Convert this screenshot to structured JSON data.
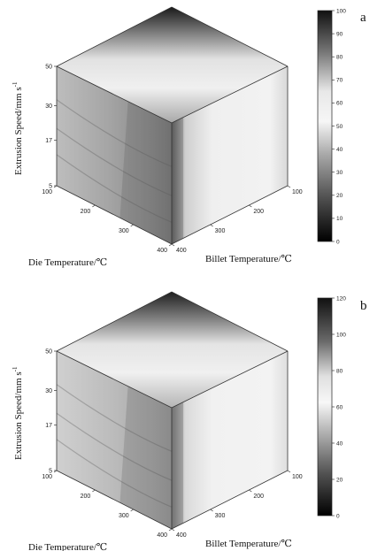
{
  "chart_data": [
    {
      "panel": "a",
      "type": "heatmap",
      "xlabel": "Die Temperature/℃",
      "ylabel_main": "Extrusion Speed/mm s",
      "ylabel_sup": "-1",
      "zlabel": "Billet Temperature/℃",
      "die_ticks": [
        "100",
        "200",
        "300",
        "400"
      ],
      "billet_ticks": [
        "100",
        "200",
        "300",
        "400"
      ],
      "speed_ticks": [
        "5",
        "17",
        "30",
        "50"
      ],
      "colorbar": {
        "min": 0,
        "max": 100,
        "ticks": [
          "0",
          "10",
          "20",
          "30",
          "40",
          "50",
          "60",
          "70",
          "80",
          "90",
          "100"
        ]
      },
      "faces": {
        "top": "dark near back corner (~95), lightening to ~60 toward front edge",
        "left": "~45-55 with darker region (~40) toward front edge",
        "right": "very light (~60-70), darker strip near front edge (~35)"
      }
    },
    {
      "panel": "b",
      "type": "heatmap",
      "xlabel": "Die Temperature/℃",
      "ylabel_main": "Extrusion Speed/mm s",
      "ylabel_sup": "-1",
      "zlabel": "Billet Temperature/℃",
      "die_ticks": [
        "100",
        "200",
        "300",
        "400"
      ],
      "billet_ticks": [
        "100",
        "200",
        "300",
        "400"
      ],
      "speed_ticks": [
        "5",
        "17",
        "30",
        "50"
      ],
      "colorbar": {
        "min": 0,
        "max": 120,
        "ticks": [
          "0",
          "20",
          "40",
          "60",
          "80",
          "100",
          "120"
        ]
      },
      "faces": {
        "top": "dark near back corner (~115), lightening to ~75 toward front edge",
        "left": "~60-70 with slightly darker region toward front edge",
        "right": "very light (~80), darker strip near front edge (~50)"
      }
    }
  ]
}
